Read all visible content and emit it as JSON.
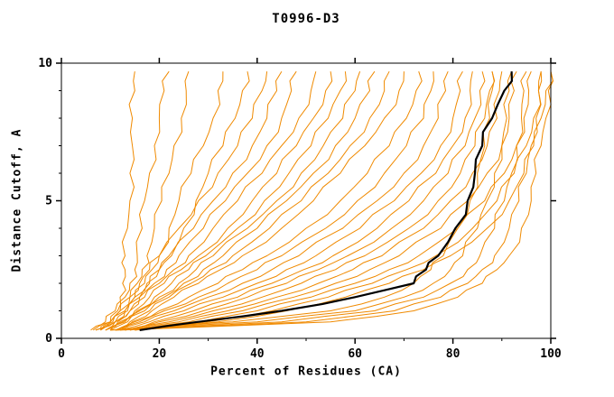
{
  "chart_data": {
    "type": "line",
    "title": "T0996-D3",
    "xlabel": "Percent of Residues (CA)",
    "ylabel": "Distance Cutoff, A",
    "xlim": [
      0,
      100
    ],
    "ylim": [
      0,
      10
    ],
    "x_ticks": [
      0,
      20,
      40,
      60,
      80,
      100
    ],
    "y_ticks": [
      0,
      5,
      10
    ],
    "x_minor_ticks": [
      10,
      30,
      50,
      70,
      90
    ],
    "y_minor_ticks": [
      1,
      2,
      3,
      4,
      6,
      7,
      8,
      9
    ],
    "grid": false,
    "legend": "none",
    "colors": {
      "model": "#F08A00",
      "reference": "#000000"
    },
    "y_levels": [
      0.3,
      0.6,
      1,
      1.5,
      2,
      2.5,
      3,
      4,
      5,
      6,
      7,
      8,
      9,
      9.7
    ],
    "series": [
      {
        "name": "model-01",
        "color": "orange",
        "x": [
          6,
          10,
          11.5,
          12,
          12.5,
          13,
          13,
          13.5,
          14,
          14,
          14.5,
          14.5,
          15,
          15
        ]
      },
      {
        "name": "model-02",
        "color": "orange",
        "x": [
          6.5,
          9,
          11,
          13,
          14,
          15,
          15.5,
          16.5,
          17,
          18,
          19,
          20,
          21,
          22
        ]
      },
      {
        "name": "model-03",
        "color": "orange",
        "x": [
          7,
          10,
          12,
          14,
          15.5,
          16.5,
          17.5,
          19,
          20.5,
          22,
          23,
          24.5,
          25.5,
          26
        ]
      },
      {
        "name": "model-04",
        "color": "orange",
        "x": [
          7,
          11,
          13,
          15,
          17,
          18.5,
          20,
          22,
          24,
          26.5,
          29,
          31,
          32,
          33
        ]
      },
      {
        "name": "model-05",
        "color": "orange",
        "x": [
          8,
          11,
          14,
          16,
          18,
          20,
          22,
          25,
          27.5,
          30,
          33,
          35.5,
          37,
          38
        ]
      },
      {
        "name": "model-06",
        "color": "orange",
        "x": [
          8,
          10,
          12,
          14,
          16,
          18,
          20,
          24,
          28,
          32,
          36,
          39,
          41,
          42
        ]
      },
      {
        "name": "model-07",
        "color": "orange",
        "x": [
          8,
          10.5,
          13,
          15,
          17.5,
          20,
          22.5,
          27,
          31,
          35,
          39,
          42,
          44,
          45
        ]
      },
      {
        "name": "model-08",
        "color": "orange",
        "x": [
          9,
          11,
          13.5,
          16,
          19,
          21.5,
          24,
          29,
          33.5,
          38,
          42,
          45,
          47,
          48
        ]
      },
      {
        "name": "model-09",
        "color": "orange",
        "x": [
          9,
          11.5,
          14,
          17,
          20,
          23,
          26,
          31,
          36,
          41,
          45,
          48.5,
          51,
          52
        ]
      },
      {
        "name": "model-10",
        "color": "orange",
        "x": [
          9,
          12,
          15,
          18,
          21,
          24.5,
          28,
          34,
          39,
          44,
          48,
          51.5,
          54,
          55
        ]
      },
      {
        "name": "model-11",
        "color": "orange",
        "x": [
          10,
          12.5,
          15.5,
          19,
          22.5,
          26,
          29.5,
          36,
          41.5,
          46.5,
          51,
          54.5,
          57,
          58
        ]
      },
      {
        "name": "model-12",
        "color": "orange",
        "x": [
          10,
          13,
          16,
          20,
          24,
          27.5,
          31,
          38,
          44,
          49,
          53.5,
          57.5,
          60,
          61
        ]
      },
      {
        "name": "model-13",
        "color": "orange",
        "x": [
          10,
          13.5,
          17,
          21,
          25,
          29,
          33,
          40,
          46,
          51.5,
          56,
          60,
          63,
          64
        ]
      },
      {
        "name": "model-14",
        "color": "orange",
        "x": [
          11,
          14,
          18,
          22,
          26.5,
          30.5,
          35,
          42.5,
          49,
          54.5,
          59,
          63,
          66,
          67
        ]
      },
      {
        "name": "model-15",
        "color": "orange",
        "x": [
          11,
          14.5,
          18.5,
          23,
          28,
          32.5,
          37,
          45,
          51.5,
          57,
          62,
          66,
          69,
          70
        ]
      },
      {
        "name": "model-16",
        "color": "orange",
        "x": [
          11,
          15,
          20,
          26,
          32,
          37,
          42,
          50,
          57,
          62.5,
          67,
          70.5,
          72.5,
          73
        ]
      },
      {
        "name": "model-17",
        "color": "orange",
        "x": [
          12,
          16,
          21,
          28,
          34,
          40,
          45,
          54,
          60.5,
          66,
          70.5,
          74,
          75.5,
          76
        ]
      },
      {
        "name": "model-18",
        "color": "orange",
        "x": [
          12,
          17,
          23,
          30,
          37,
          43,
          48.5,
          57.5,
          64.5,
          70,
          74,
          77,
          78.5,
          79
        ]
      },
      {
        "name": "model-19",
        "color": "orange",
        "x": [
          12,
          18,
          25,
          33,
          40,
          46,
          52,
          61,
          68,
          73.5,
          77.5,
          80,
          81.5,
          82
        ]
      },
      {
        "name": "model-20",
        "color": "orange",
        "x": [
          13,
          19,
          27,
          36,
          43,
          49.5,
          55.5,
          64.5,
          71,
          76.5,
          80,
          82.5,
          83.5,
          84
        ]
      },
      {
        "name": "model-21",
        "color": "orange",
        "x": [
          13,
          20,
          29,
          38,
          46,
          52.5,
          58.5,
          67.5,
          74,
          79,
          82.5,
          84.5,
          85.5,
          86
        ]
      },
      {
        "name": "model-22",
        "color": "orange",
        "x": [
          13,
          22,
          31,
          41,
          49,
          56,
          62,
          71,
          77,
          81.5,
          84.5,
          86.5,
          87.5,
          88
        ]
      },
      {
        "name": "model-23",
        "color": "orange",
        "x": [
          14,
          24,
          34,
          44,
          52.5,
          59.5,
          65.5,
          74,
          79.5,
          84,
          87,
          89,
          89.5,
          90
        ]
      },
      {
        "name": "model-24",
        "color": "orange",
        "x": [
          14,
          26,
          37,
          47.5,
          56,
          63,
          69,
          77.5,
          83,
          87,
          90,
          91.5,
          92.5,
          93
        ]
      },
      {
        "name": "model-25",
        "color": "orange",
        "x": [
          15,
          28,
          40,
          51,
          60,
          67,
          73,
          81,
          86.5,
          90.5,
          93,
          94.5,
          95.5,
          96
        ]
      },
      {
        "name": "model-26",
        "color": "orange",
        "x": [
          15,
          30,
          43,
          54.5,
          63.5,
          70.5,
          76.5,
          84,
          89,
          92.5,
          95,
          96.5,
          97.5,
          98
        ]
      },
      {
        "name": "model-27",
        "color": "orange",
        "x": [
          16,
          32,
          46,
          58,
          67,
          74,
          79.5,
          87,
          91.5,
          94.5,
          96.5,
          98,
          99,
          100
        ]
      },
      {
        "name": "model-28",
        "color": "orange",
        "x": [
          10,
          35,
          55,
          66,
          72,
          75.5,
          78,
          81,
          83.5,
          85,
          86.5,
          87.5,
          88,
          88
        ]
      },
      {
        "name": "model-29",
        "color": "orange",
        "x": [
          10,
          40,
          60,
          70,
          76,
          79.5,
          82,
          85,
          87,
          88.5,
          90,
          91,
          91.5,
          92
        ]
      },
      {
        "name": "model-30",
        "color": "orange",
        "x": [
          11,
          45,
          64,
          74,
          79.5,
          83,
          85.5,
          88.5,
          90.5,
          92,
          93,
          94,
          94.5,
          95
        ]
      },
      {
        "name": "model-31",
        "color": "orange",
        "x": [
          11,
          50,
          68,
          77.5,
          83,
          86,
          88.5,
          91.5,
          93.5,
          95,
          96,
          97,
          97.5,
          98
        ]
      },
      {
        "name": "model-32",
        "color": "orange",
        "x": [
          12,
          55,
          72,
          81,
          86,
          89,
          91.5,
          94,
          96,
          97,
          98,
          99,
          99.5,
          100
        ]
      },
      {
        "name": "highlighted-model",
        "color": "black",
        "x": [
          16,
          28,
          45,
          60,
          72,
          74.5,
          77,
          80.5,
          83,
          84.5,
          86,
          88,
          90.5,
          92
        ]
      }
    ]
  }
}
